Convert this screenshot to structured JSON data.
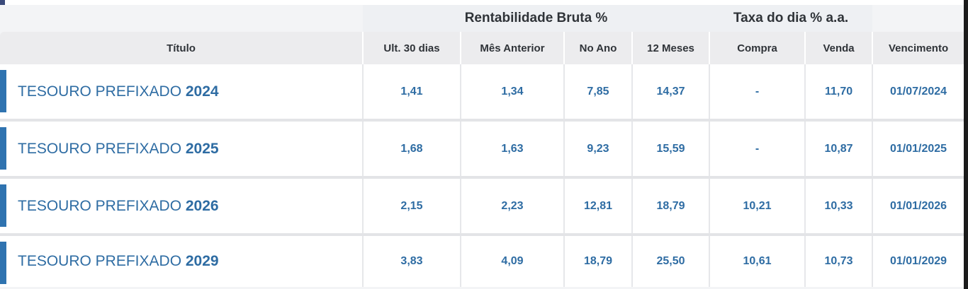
{
  "table": {
    "group_headers": {
      "rentabilidade": "Rentabilidade Bruta %",
      "taxa": "Taxa do dia % a.a."
    },
    "columns": [
      "Título",
      "Ult. 30 dias",
      "Mês Anterior",
      "No Ano",
      "12 Meses",
      "Compra",
      "Venda",
      "Vencimento"
    ],
    "rows": [
      {
        "title": "TESOURO PREFIXADO ",
        "year": "2024",
        "ult30": "1,41",
        "mes_anterior": "1,34",
        "no_ano": "7,85",
        "doze_meses": "14,37",
        "compra": "-",
        "venda": "11,70",
        "vencimento": "01/07/2024"
      },
      {
        "title": "TESOURO PREFIXADO ",
        "year": "2025",
        "ult30": "1,68",
        "mes_anterior": "1,63",
        "no_ano": "9,23",
        "doze_meses": "15,59",
        "compra": "-",
        "venda": "10,87",
        "vencimento": "01/01/2025"
      },
      {
        "title": "TESOURO PREFIXADO ",
        "year": "2026",
        "ult30": "2,15",
        "mes_anterior": "2,23",
        "no_ano": "12,81",
        "doze_meses": "18,79",
        "compra": "10,21",
        "venda": "10,33",
        "vencimento": "01/01/2026"
      },
      {
        "title": "TESOURO PREFIXADO ",
        "year": "2029",
        "ult30": "3,83",
        "mes_anterior": "4,09",
        "no_ano": "18,79",
        "doze_meses": "25,50",
        "compra": "10,61",
        "venda": "10,73",
        "vencimento": "01/01/2029"
      }
    ]
  },
  "colors": {
    "accent": "#2f73b0",
    "value_text": "#2e6ca3",
    "header_text": "#2f3338",
    "top_border": "#2b2f55"
  }
}
